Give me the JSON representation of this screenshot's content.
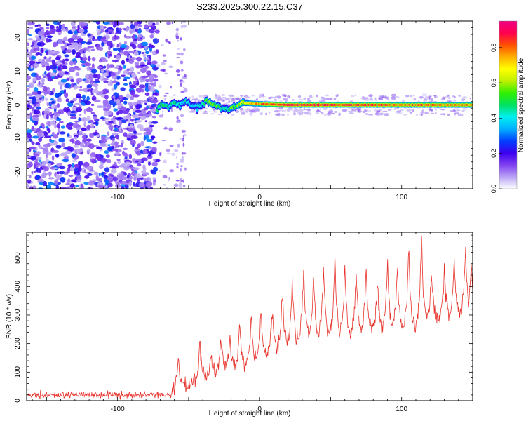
{
  "chart_data": [
    {
      "type": "heatmap",
      "title": "S233.2025.300.22.15.C37",
      "xlabel": "Height of straight line (km)",
      "ylabel": "Frequency (Hz)",
      "xlim": [
        -164,
        150
      ],
      "ylim": [
        -25,
        25
      ],
      "xticks": [
        -100,
        0,
        100
      ],
      "yticks": [
        -20,
        -10,
        0,
        10,
        20
      ],
      "colorbar": {
        "label": "Normalized spectral amplitude",
        "range": [
          0,
          0.95
        ],
        "ticks": [
          0.0,
          0.2,
          0.4,
          0.6,
          0.8
        ],
        "tick_labels": [
          "0.0",
          "0.2",
          "0.4",
          "0.6",
          "0.8"
        ],
        "colors": [
          "#ffffff",
          "#b9a3f5",
          "#7f3ff0",
          "#3b00f0",
          "#0040ff",
          "#00b0ff",
          "#00f0f0",
          "#00e060",
          "#30f000",
          "#c0f000",
          "#ffff00",
          "#ffb000",
          "#ff5000",
          "#ff0050",
          "#f00080"
        ]
      },
      "noise_region_x": [
        -164,
        -72
      ],
      "sparse_region_x": [
        -72,
        -52
      ],
      "signal_track": {
        "x": [
          -72,
          -68,
          -64,
          -60,
          -56,
          -52,
          -48,
          -44,
          -40,
          -36,
          -32,
          -28,
          -24,
          -20,
          -16,
          -12,
          -8,
          0,
          20,
          40,
          60,
          80,
          100,
          120,
          150
        ],
        "frequency_hz": [
          -1.5,
          0.5,
          -1.0,
          1.0,
          -0.5,
          1.5,
          0.0,
          -1.0,
          0.5,
          1.0,
          0.0,
          -1.0,
          -1.5,
          -1.0,
          0.0,
          0.5,
          0.5,
          0.3,
          0.0,
          0.0,
          0.0,
          0.0,
          0.0,
          0.0,
          0.0
        ],
        "peak_amplitude": [
          0.45,
          0.5,
          0.4,
          0.45,
          0.35,
          0.4,
          0.35,
          0.35,
          0.45,
          0.55,
          0.55,
          0.45,
          0.4,
          0.5,
          0.55,
          0.6,
          0.65,
          0.75,
          0.85,
          0.85,
          0.8,
          0.8,
          0.75,
          0.75,
          0.7
        ]
      }
    },
    {
      "type": "line",
      "title": "",
      "xlabel": "Height of straight line (km)",
      "ylabel": "SNR (10 * v/v)",
      "xlim": [
        -164,
        150
      ],
      "ylim": [
        0,
        590
      ],
      "xticks": [
        -100,
        0,
        100
      ],
      "yticks": [
        0,
        100,
        200,
        300,
        400,
        500
      ],
      "color": "#e8312a",
      "series": [
        {
          "name": "SNR",
          "noise_level_before_onset": 20,
          "onset_x": -62,
          "baseline_x": [
            -164,
            -62,
            -50,
            -40,
            -30,
            -20,
            -10,
            0,
            10,
            20,
            30,
            40,
            50,
            60,
            70,
            80,
            90,
            100,
            110,
            120,
            130,
            140,
            150
          ],
          "baseline_y": [
            20,
            25,
            55,
            75,
            85,
            100,
            120,
            140,
            165,
            185,
            205,
            215,
            220,
            215,
            225,
            235,
            240,
            240,
            245,
            265,
            275,
            285,
            300
          ],
          "peaks_x": [
            -57,
            -42,
            -34,
            -27,
            -21,
            -14,
            -6,
            1,
            9,
            16,
            23,
            31,
            38,
            45,
            53,
            60,
            68,
            75,
            83,
            90,
            97,
            105,
            114,
            121,
            130,
            137,
            145,
            149
          ],
          "peaks_y": [
            150,
            195,
            185,
            230,
            235,
            275,
            305,
            325,
            315,
            380,
            430,
            470,
            435,
            460,
            495,
            475,
            465,
            470,
            430,
            510,
            485,
            535,
            590,
            460,
            470,
            490,
            550,
            480
          ]
        }
      ]
    }
  ]
}
